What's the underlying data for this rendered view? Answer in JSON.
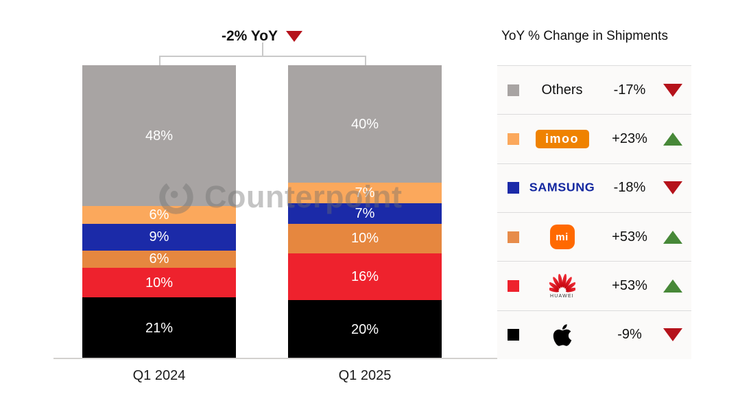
{
  "title": {
    "text": "-2% YoY",
    "direction": "down"
  },
  "watermark": "Counterpoint",
  "legend": {
    "title": "YoY % Change in Shipments",
    "rows": [
      {
        "brand": "others",
        "logo_text": "Others",
        "change": "-17%",
        "direction": "down",
        "swatch": "#a8a4a3"
      },
      {
        "brand": "imoo",
        "logo_text": "imoo",
        "change": "+23%",
        "direction": "up",
        "swatch": "#fba85c"
      },
      {
        "brand": "samsung",
        "logo_text": "SAMSUNG",
        "change": "-18%",
        "direction": "down",
        "swatch": "#1b2aa8"
      },
      {
        "brand": "xiaomi",
        "logo_text": "mi",
        "change": "+53%",
        "direction": "up",
        "swatch": "#e78c4a"
      },
      {
        "brand": "huawei",
        "logo_text": "HUAWEI",
        "change": "+53%",
        "direction": "up",
        "swatch": "#ee222d"
      },
      {
        "brand": "apple",
        "logo_text": "",
        "change": "-9%",
        "direction": "down",
        "swatch": "#000000"
      }
    ]
  },
  "chart_data": {
    "type": "bar",
    "subtype": "stacked-100-percent",
    "title": "-2% YoY",
    "categories": [
      "Q1 2024",
      "Q1 2025"
    ],
    "value_suffix": "%",
    "ylim": [
      0,
      100
    ],
    "legend_position": "right",
    "series": [
      {
        "name": "Others",
        "color": "#a8a4a3",
        "values": [
          48,
          40
        ],
        "yoy_change": "-17%"
      },
      {
        "name": "imoo",
        "color": "#fba85c",
        "values": [
          6,
          7
        ],
        "yoy_change": "+23%"
      },
      {
        "name": "Samsung",
        "color": "#1b2aa8",
        "values": [
          9,
          7
        ],
        "yoy_change": "-18%"
      },
      {
        "name": "Xiaomi",
        "color": "#e6873f",
        "values": [
          6,
          10
        ],
        "yoy_change": "+53%"
      },
      {
        "name": "Huawei",
        "color": "#ee222d",
        "values": [
          10,
          16
        ],
        "yoy_change": "+53%"
      },
      {
        "name": "Apple",
        "color": "#000000",
        "values": [
          21,
          20
        ],
        "yoy_change": "-9%"
      }
    ]
  }
}
